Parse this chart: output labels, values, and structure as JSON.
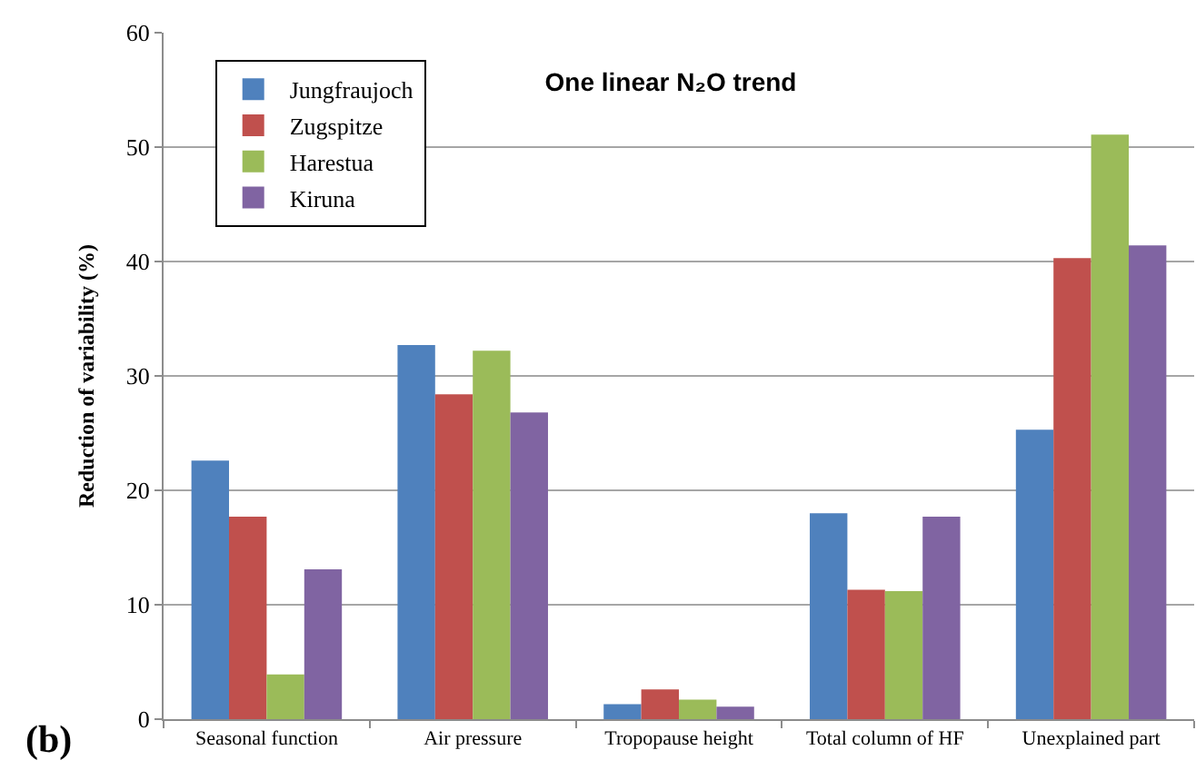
{
  "chart_data": {
    "type": "bar",
    "title": "One linear N₂O trend",
    "ylabel": "Reduction of variability (%)",
    "annotations": [
      "(b)"
    ],
    "categories": [
      "Seasonal function",
      "Air pressure",
      "Tropopause height",
      "Total column of HF",
      "Unexplained part"
    ],
    "series": [
      {
        "name": "Jungfraujoch",
        "color": "#4f81bd",
        "values": [
          22.6,
          32.7,
          1.3,
          18.0,
          25.3
        ]
      },
      {
        "name": "Zugspitze",
        "color": "#c0504d",
        "values": [
          17.7,
          28.4,
          2.6,
          11.3,
          40.3
        ]
      },
      {
        "name": "Harestua",
        "color": "#9bbb59",
        "values": [
          3.9,
          32.2,
          1.7,
          11.2,
          51.1
        ]
      },
      {
        "name": "Kiruna",
        "color": "#8064a2",
        "values": [
          13.1,
          26.8,
          1.1,
          17.7,
          41.4
        ]
      }
    ],
    "ylim": [
      0,
      60
    ],
    "yticks": [
      0,
      10,
      20,
      30,
      40,
      50,
      60
    ],
    "grid": "y",
    "legend": "top left"
  }
}
